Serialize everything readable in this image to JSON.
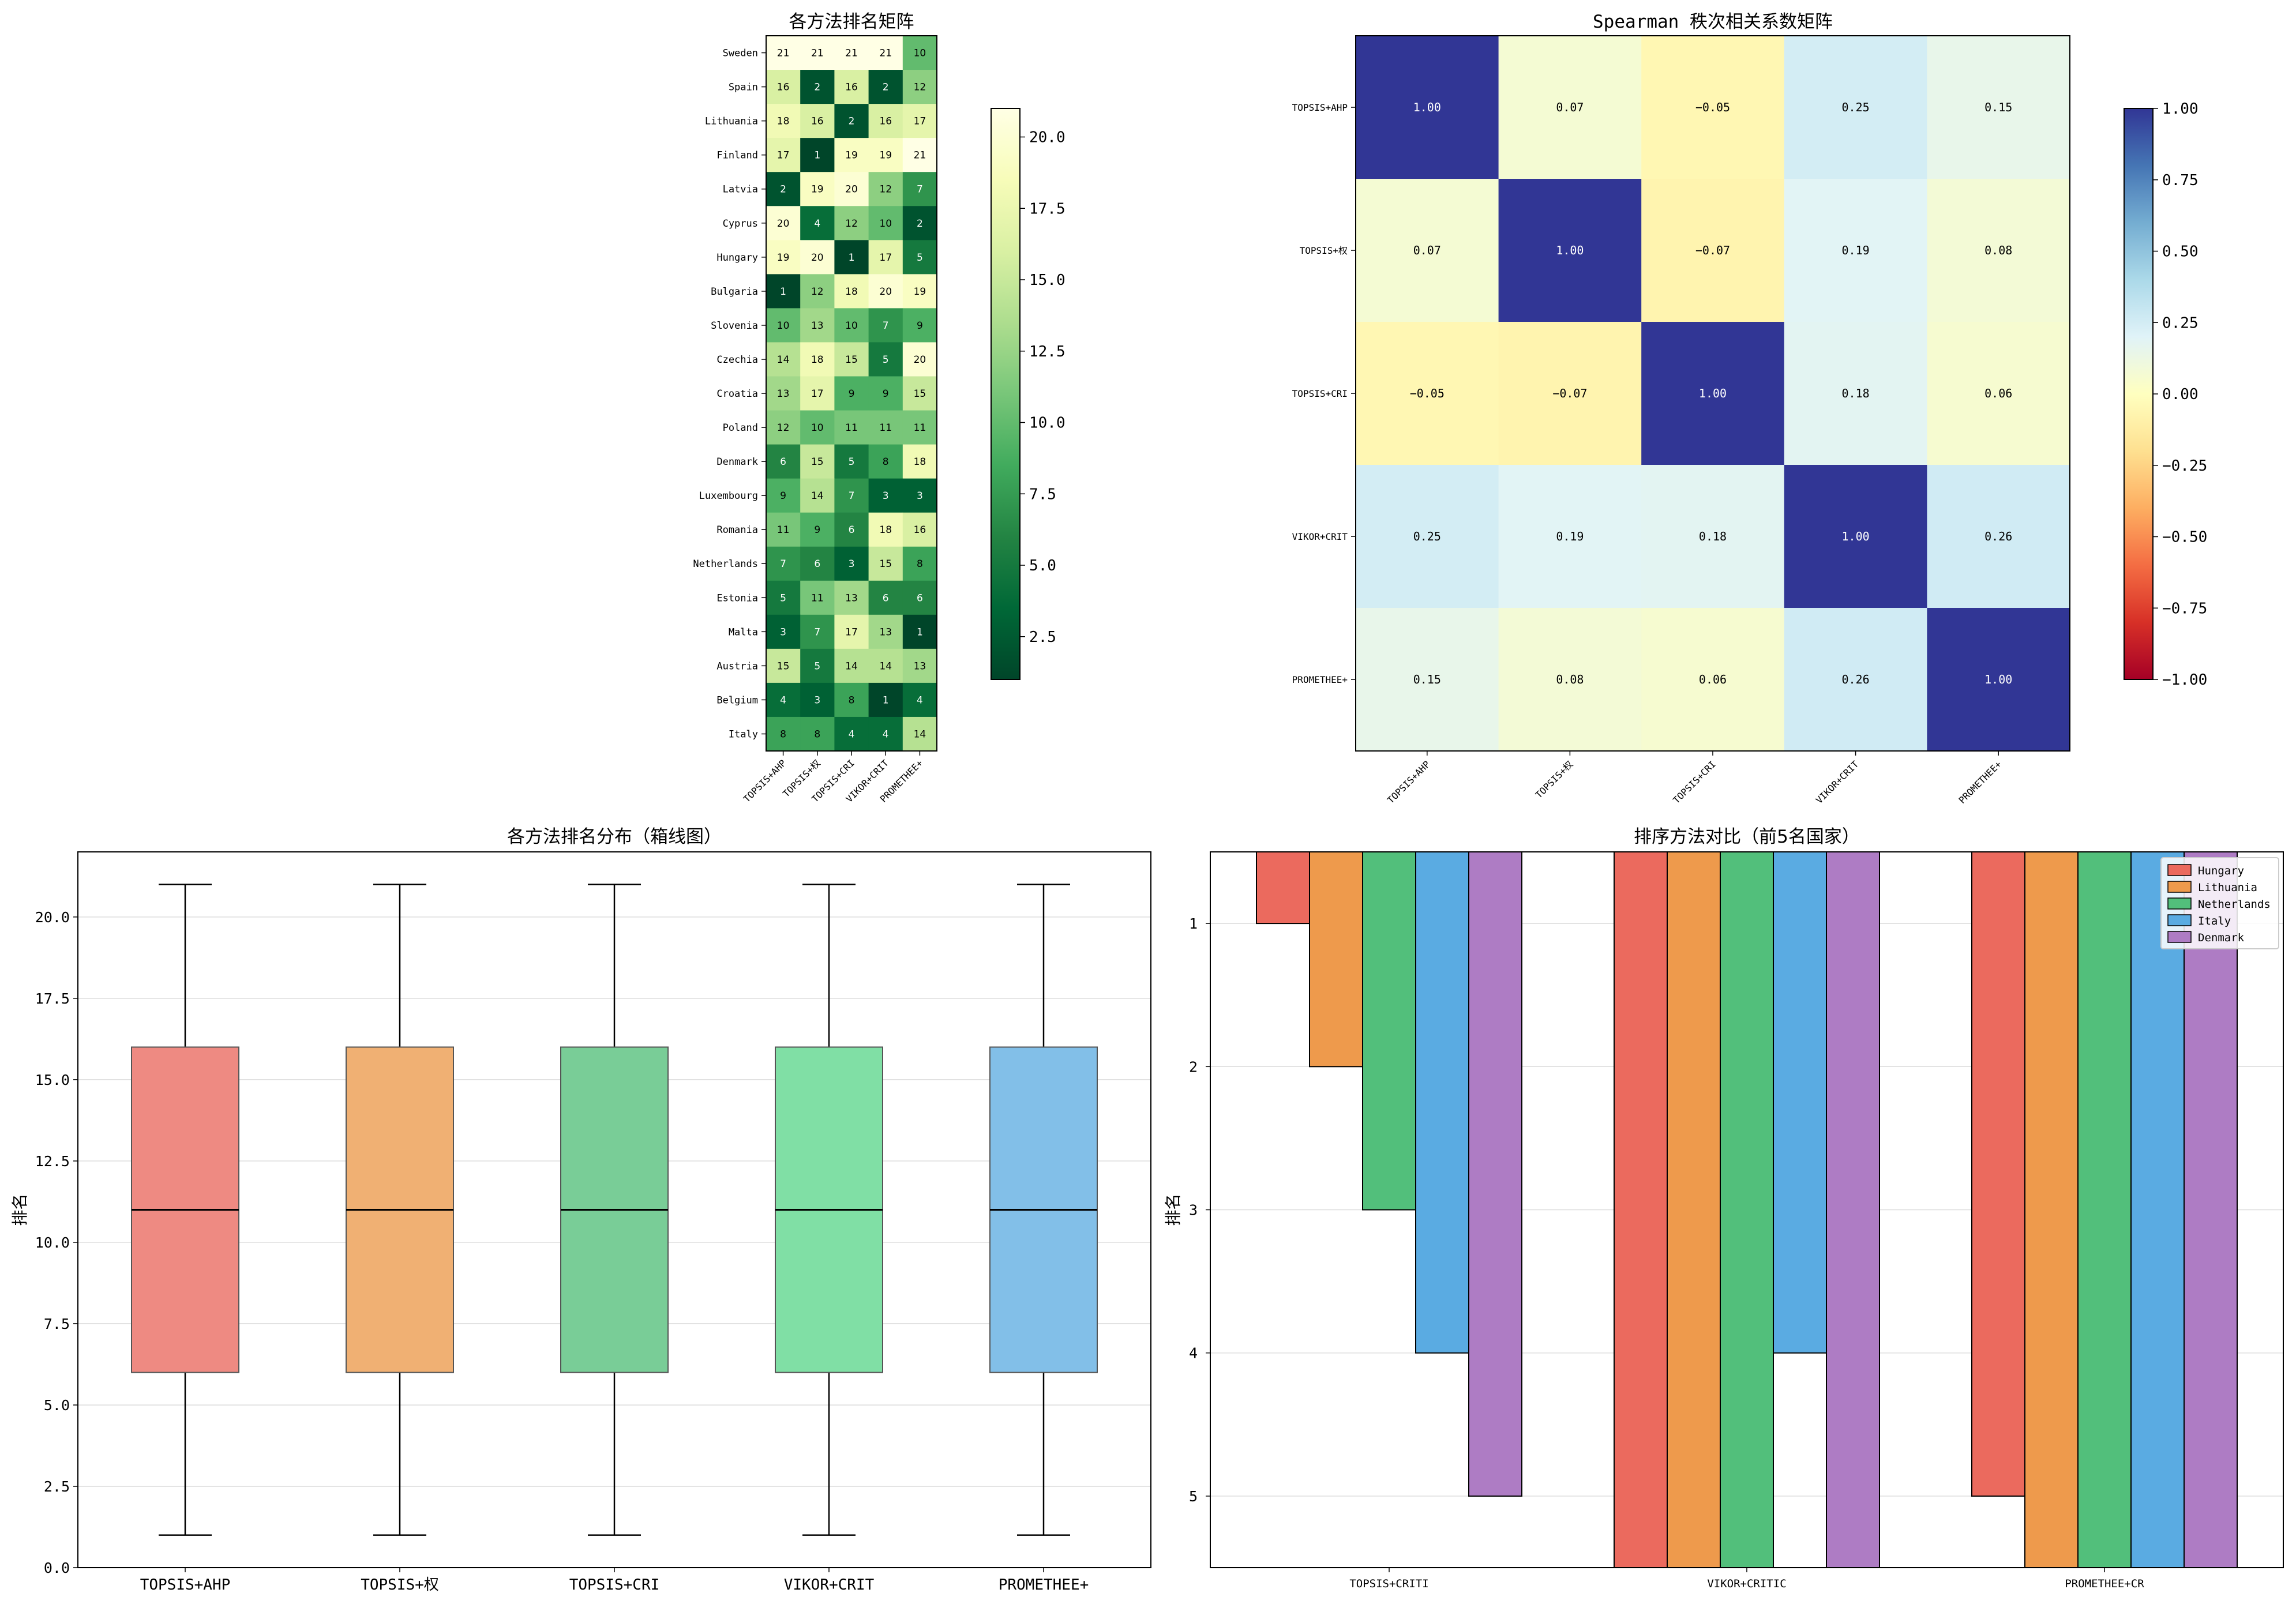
{
  "chart_data": [
    {
      "type": "heatmap",
      "title": "各方法排名矩阵",
      "x_labels": [
        "TOPSIS+AHP",
        "TOPSIS+权",
        "TOPSIS+CRI",
        "VIKOR+CRIT",
        "PROMETHEE+"
      ],
      "y_labels": [
        "Sweden",
        "Spain",
        "Lithuania",
        "Finland",
        "Latvia",
        "Cyprus",
        "Hungary",
        "Bulgaria",
        "Slovenia",
        "Czechia",
        "Croatia",
        "Poland",
        "Denmark",
        "Luxembourg",
        "Romania",
        "Netherlands",
        "Estonia",
        "Malta",
        "Austria",
        "Belgium",
        "Italy"
      ],
      "values": [
        [
          21,
          21,
          21,
          21,
          10
        ],
        [
          16,
          2,
          16,
          2,
          12
        ],
        [
          18,
          16,
          2,
          16,
          17
        ],
        [
          17,
          1,
          19,
          19,
          21
        ],
        [
          2,
          19,
          20,
          12,
          7
        ],
        [
          20,
          4,
          12,
          10,
          2
        ],
        [
          19,
          20,
          1,
          17,
          5
        ],
        [
          1,
          12,
          18,
          20,
          19
        ],
        [
          10,
          13,
          10,
          7,
          9
        ],
        [
          14,
          18,
          15,
          5,
          20
        ],
        [
          13,
          17,
          9,
          9,
          15
        ],
        [
          12,
          10,
          11,
          11,
          11
        ],
        [
          6,
          15,
          5,
          8,
          18
        ],
        [
          9,
          14,
          7,
          3,
          3
        ],
        [
          11,
          9,
          6,
          18,
          16
        ],
        [
          7,
          6,
          3,
          15,
          8
        ],
        [
          5,
          11,
          13,
          6,
          6
        ],
        [
          3,
          7,
          17,
          13,
          1
        ],
        [
          15,
          5,
          14,
          14,
          13
        ],
        [
          4,
          3,
          8,
          1,
          4
        ],
        [
          8,
          8,
          4,
          4,
          14
        ]
      ],
      "colormap": "YlGn_r",
      "vmin": 1,
      "vmax": 21,
      "colorbar_ticks": [
        "2.5",
        "5.0",
        "7.5",
        "10.0",
        "12.5",
        "15.0",
        "17.5",
        "20.0"
      ]
    },
    {
      "type": "heatmap",
      "title": "Spearman 秩次相关系数矩阵",
      "x_labels": [
        "TOPSIS+AHP",
        "TOPSIS+权",
        "TOPSIS+CRI",
        "VIKOR+CRIT",
        "PROMETHEE+"
      ],
      "y_labels": [
        "TOPSIS+AHP",
        "TOPSIS+权",
        "TOPSIS+CRI",
        "VIKOR+CRIT",
        "PROMETHEE+"
      ],
      "values": [
        [
          1.0,
          0.07,
          -0.05,
          0.25,
          0.15
        ],
        [
          0.07,
          1.0,
          -0.07,
          0.19,
          0.08
        ],
        [
          -0.05,
          -0.07,
          1.0,
          0.18,
          0.06
        ],
        [
          0.25,
          0.19,
          0.18,
          1.0,
          0.26
        ],
        [
          0.15,
          0.08,
          0.06,
          0.26,
          1.0
        ]
      ],
      "value_labels": [
        [
          "1.00",
          "0.07",
          "−0.05",
          "0.25",
          "0.15"
        ],
        [
          "0.07",
          "1.00",
          "−0.07",
          "0.19",
          "0.08"
        ],
        [
          "−0.05",
          "−0.07",
          "1.00",
          "0.18",
          "0.06"
        ],
        [
          "0.25",
          "0.19",
          "0.18",
          "1.00",
          "0.26"
        ],
        [
          "0.15",
          "0.08",
          "0.06",
          "0.26",
          "1.00"
        ]
      ],
      "colormap": "RdYlBu",
      "vmin": -1,
      "vmax": 1,
      "colorbar_ticks": [
        {
          "v": -1.0,
          "label": "−1.00"
        },
        {
          "v": -0.75,
          "label": "−0.75"
        },
        {
          "v": -0.5,
          "label": "−0.50"
        },
        {
          "v": -0.25,
          "label": "−0.25"
        },
        {
          "v": 0.0,
          "label": "0.00"
        },
        {
          "v": 0.25,
          "label": "0.25"
        },
        {
          "v": 0.5,
          "label": "0.50"
        },
        {
          "v": 0.75,
          "label": "0.75"
        },
        {
          "v": 1.0,
          "label": "1.00"
        }
      ]
    },
    {
      "type": "box",
      "title": "各方法排名分布（箱线图）",
      "ylabel": "排名",
      "categories": [
        "TOPSIS+AHP",
        "TOPSIS+权",
        "TOPSIS+CRI",
        "VIKOR+CRIT",
        "PROMETHEE+"
      ],
      "boxes": [
        {
          "min": 1,
          "q1": 6,
          "median": 11,
          "q3": 16,
          "max": 21,
          "color": "#ee8a82"
        },
        {
          "min": 1,
          "q1": 6,
          "median": 11,
          "q3": 16,
          "max": 21,
          "color": "#f0b073"
        },
        {
          "min": 1,
          "q1": 6,
          "median": 11,
          "q3": 16,
          "max": 21,
          "color": "#79cd97"
        },
        {
          "min": 1,
          "q1": 6,
          "median": 11,
          "q3": 16,
          "max": 21,
          "color": "#80dfa5"
        },
        {
          "min": 1,
          "q1": 6,
          "median": 11,
          "q3": 16,
          "max": 21,
          "color": "#82bfe8"
        }
      ],
      "ylim": [
        0,
        22
      ],
      "yticks": [
        {
          "v": 0,
          "label": "0.0"
        },
        {
          "v": 2.5,
          "label": "2.5"
        },
        {
          "v": 5,
          "label": "5.0"
        },
        {
          "v": 7.5,
          "label": "7.5"
        },
        {
          "v": 10,
          "label": "10.0"
        },
        {
          "v": 12.5,
          "label": "12.5"
        },
        {
          "v": 15,
          "label": "15.0"
        },
        {
          "v": 17.5,
          "label": "17.5"
        },
        {
          "v": 20,
          "label": "20.0"
        }
      ],
      "grid": true
    },
    {
      "type": "bar",
      "title": "排序方法对比（前5名国家）",
      "ylabel": "排名",
      "categories": [
        "TOPSIS+CRITI",
        "VIKOR+CRITIC",
        "PROMETHEE+CR"
      ],
      "series": [
        {
          "name": "Hungary",
          "color": "#eb6a5e",
          "values": [
            1,
            5.5,
            5
          ]
        },
        {
          "name": "Lithuania",
          "color": "#ee9a4c",
          "values": [
            2,
            5.5,
            5.5
          ]
        },
        {
          "name": "Netherlands",
          "color": "#52bf7b",
          "values": [
            3,
            5.5,
            5.5
          ]
        },
        {
          "name": "Italy",
          "color": "#5aabe2",
          "values": [
            4,
            4,
            5.5
          ]
        },
        {
          "name": "Denmark",
          "color": "#ae7cc4",
          "values": [
            5,
            5.5,
            5.5
          ]
        }
      ],
      "ylim": [
        5.5,
        0.5
      ],
      "y_inverted": true,
      "yticks": [
        "1",
        "2",
        "3",
        "4",
        "5"
      ],
      "legend": "top-right",
      "grid": true
    }
  ]
}
